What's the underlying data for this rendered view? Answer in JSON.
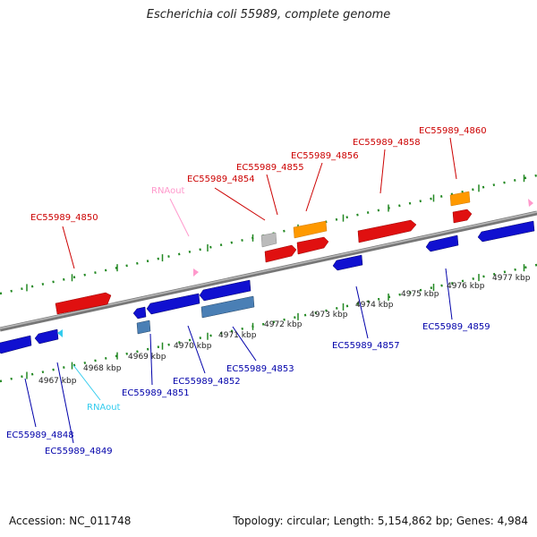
{
  "title": "Escherichia coli 55989, complete genome",
  "footer": {
    "accession": "Accession: NC_011748",
    "summary": "Topology: circular; Length: 5,154,862 bp; Genes: 4,984"
  },
  "colors": {
    "forward_gene": "#e01010",
    "reverse_gene": "#1010d0",
    "rna": "#ff9900",
    "pseudo_forward": "#bbbbbb",
    "pseudo_reverse": "#4a7fb5",
    "forward_label": "#cc0000",
    "reverse_label": "#0000aa",
    "rna_forward_label": "#ff99cc",
    "rna_reverse_label": "#33ccee",
    "backbone": "#888888",
    "ticks": "#228822"
  },
  "scale": {
    "tick_labels": [
      "4967 kbp",
      "4968 kbp",
      "4969 kbp",
      "4970 kbp",
      "4971 kbp",
      "4972 kbp",
      "4973 kbp",
      "4974 kbp",
      "4975 kbp",
      "4976 kbp",
      "4977 kbp"
    ]
  },
  "forward_labels": [
    "EC55989_4850",
    "RNAout",
    "EC55989_4854",
    "EC55989_4855",
    "EC55989_4856",
    "EC55989_4858",
    "EC55989_4860"
  ],
  "reverse_labels": [
    "EC55989_4848",
    "EC55989_4849",
    "RNAout",
    "EC55989_4851",
    "EC55989_4852",
    "EC55989_4853",
    "EC55989_4857",
    "EC55989_4859"
  ]
}
